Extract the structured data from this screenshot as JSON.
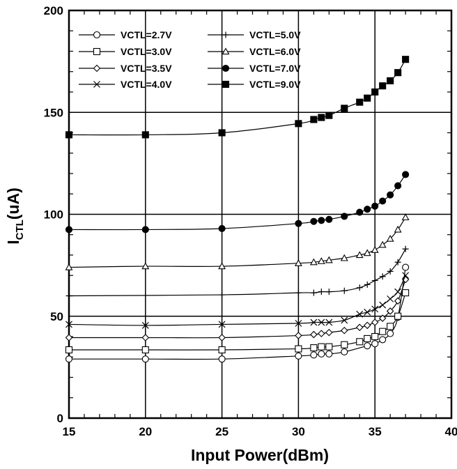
{
  "chart_data": {
    "type": "line",
    "xlabel": "Input Power(dBm)",
    "ylabel_main": "I",
    "ylabel_sub": "CTL",
    "ylabel_unit": "(uA)",
    "xlim": [
      15,
      40
    ],
    "ylim": [
      0,
      200
    ],
    "xticks": [
      15,
      20,
      25,
      30,
      35,
      40
    ],
    "yticks": [
      0,
      50,
      100,
      150,
      200
    ],
    "grid": true,
    "legend_position": "top-left",
    "series": [
      {
        "name": "VCTL=2.7V",
        "marker": "circle-open",
        "x": [
          15,
          20,
          25,
          30,
          31,
          31.5,
          32,
          33,
          34.5,
          35,
          35.5,
          36,
          36.5,
          37
        ],
        "y": [
          29,
          29,
          29,
          30.5,
          31,
          31.5,
          31.5,
          32.5,
          35.5,
          36.5,
          38.5,
          41.5,
          49.5,
          74
        ]
      },
      {
        "name": "VCTL=3.0V",
        "marker": "square-open",
        "x": [
          15,
          20,
          25,
          30,
          31,
          31.5,
          32,
          33,
          34,
          34.5,
          35,
          35.5,
          36,
          36.5,
          37
        ],
        "y": [
          33.5,
          33.5,
          33.5,
          34,
          34.5,
          35,
          35,
          36,
          37.5,
          39,
          40,
          42.5,
          45,
          50,
          61.5
        ]
      },
      {
        "name": "VCTL=3.5V",
        "marker": "diamond-open",
        "x": [
          15,
          20,
          25,
          30,
          31,
          31.5,
          32,
          33,
          34,
          34.5,
          35,
          35.5,
          36,
          36.5,
          37
        ],
        "y": [
          39.5,
          39.5,
          39.5,
          40.5,
          41,
          41.5,
          42,
          43,
          44.5,
          45.5,
          47,
          49,
          52.5,
          57.5,
          68
        ]
      },
      {
        "name": "VCTL=4.0V",
        "marker": "x",
        "x": [
          15,
          20,
          25,
          30,
          31,
          31.5,
          32,
          33,
          34,
          34.5,
          35,
          35.5,
          36,
          36.5,
          37
        ],
        "y": [
          46,
          45.5,
          46,
          46.5,
          47,
          47,
          47,
          48,
          51,
          52,
          53.5,
          55.5,
          58.5,
          62,
          70
        ]
      },
      {
        "name": "VCTL=5.0V",
        "marker": "plus",
        "x": [
          15,
          25,
          30,
          31,
          31.5,
          32,
          33,
          34,
          34.5,
          35,
          35.5,
          36,
          36.5,
          37
        ],
        "y": [
          60,
          60.5,
          61.5,
          61.5,
          62,
          62,
          62.5,
          64,
          65.5,
          67.5,
          69.5,
          72,
          76.5,
          83
        ]
      },
      {
        "name": "VCTL=6.0V",
        "marker": "triangle-open",
        "x": [
          15,
          20,
          25,
          30,
          31,
          31.5,
          32,
          33,
          34,
          34.5,
          35,
          35.5,
          36,
          36.5,
          37
        ],
        "y": [
          74,
          74.5,
          74.5,
          76,
          76.5,
          77,
          77.5,
          78.5,
          80,
          81,
          82.5,
          85,
          88,
          92.5,
          98.5
        ]
      },
      {
        "name": "VCTL=7.0V",
        "marker": "circle-filled",
        "x": [
          15,
          20,
          25,
          30,
          31,
          31.5,
          32,
          33,
          34,
          34.5,
          35,
          35.5,
          36,
          36.5,
          37
        ],
        "y": [
          92.5,
          92.5,
          93,
          95.5,
          96.5,
          97,
          97.5,
          99,
          101,
          102.5,
          104,
          106.5,
          109.5,
          114,
          119.5
        ]
      },
      {
        "name": "VCTL=9.0V",
        "marker": "square-filled",
        "x": [
          15,
          20,
          25,
          30,
          31,
          31.5,
          32,
          33,
          34,
          34.5,
          35,
          35.5,
          36,
          36.5,
          37
        ],
        "y": [
          139,
          139,
          140,
          144.5,
          146.5,
          147.5,
          148.5,
          152,
          155,
          157,
          160,
          163,
          165.5,
          169.5,
          176
        ]
      }
    ]
  }
}
